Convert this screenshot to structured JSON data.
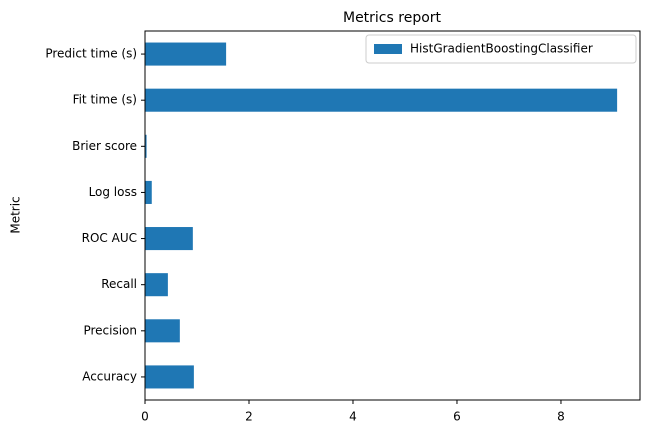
{
  "chart_data": {
    "type": "barh",
    "title": "Metrics report",
    "ylabel": "Metric",
    "categories": [
      "Accuracy",
      "Precision",
      "Recall",
      "ROC AUC",
      "Log loss",
      "Brier score",
      "Fit time (s)",
      "Predict time (s)"
    ],
    "series": [
      {
        "name": "HistGradientBoostingClassifier",
        "color": "#1f77b4",
        "values": [
          0.94,
          0.67,
          0.44,
          0.92,
          0.13,
          0.03,
          9.08,
          1.56
        ]
      }
    ],
    "xlim": [
      0,
      9.52
    ],
    "xticks": [
      0,
      2,
      4,
      6,
      8
    ],
    "legend": "upper right"
  }
}
